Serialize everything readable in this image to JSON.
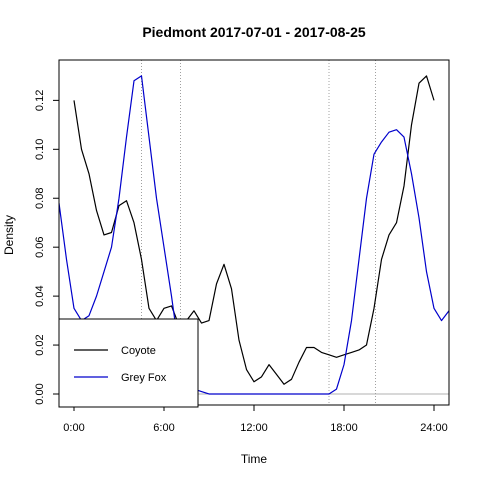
{
  "chart_data": {
    "type": "line",
    "title": "Piedmont 2017-07-01 - 2017-08-25",
    "xlabel": "Time",
    "ylabel": "Density",
    "xlim": [
      -1,
      25
    ],
    "ylim": [
      -0.0045,
      0.1365
    ],
    "x_ticks": [
      0,
      6,
      12,
      18,
      24
    ],
    "x_tick_labels": [
      "0:00",
      "6:00",
      "12:00",
      "18:00",
      "24:00"
    ],
    "y_ticks": [
      0.0,
      0.02,
      0.04,
      0.06,
      0.08,
      0.1,
      0.12
    ],
    "y_tick_labels": [
      "0.00",
      "0.02",
      "0.04",
      "0.06",
      "0.08",
      "0.10",
      "0.12"
    ],
    "vertical_reference_lines_x": [
      4.5,
      7.1,
      17.0,
      20.1
    ],
    "horizontal_reference_line_y": 0.0,
    "legend_position": "bottom-left",
    "series": [
      {
        "name": "Coyote",
        "color": "#000000",
        "x": [
          0,
          0.5,
          1,
          1.5,
          2,
          2.5,
          3,
          3.5,
          4,
          4.5,
          5,
          5.5,
          6,
          6.5,
          7,
          7.5,
          8,
          8.5,
          9,
          9.5,
          10,
          10.5,
          11,
          11.5,
          12,
          12.5,
          13,
          13.5,
          14,
          14.5,
          15,
          15.5,
          16,
          16.5,
          17,
          17.5,
          18,
          18.5,
          19,
          19.5,
          20,
          20.5,
          21,
          21.5,
          22,
          22.5,
          23,
          23.5,
          24
        ],
        "values": [
          0.12,
          0.1,
          0.09,
          0.075,
          0.065,
          0.066,
          0.077,
          0.079,
          0.07,
          0.055,
          0.035,
          0.03,
          0.035,
          0.036,
          0.028,
          0.03,
          0.034,
          0.029,
          0.03,
          0.045,
          0.053,
          0.043,
          0.022,
          0.01,
          0.005,
          0.007,
          0.012,
          0.008,
          0.004,
          0.006,
          0.013,
          0.019,
          0.019,
          0.017,
          0.016,
          0.015,
          0.016,
          0.017,
          0.018,
          0.02,
          0.035,
          0.055,
          0.065,
          0.07,
          0.085,
          0.11,
          0.127,
          0.13,
          0.12
        ]
      },
      {
        "name": "Grey Fox",
        "color": "#0000cc",
        "x": [
          -1,
          -0.5,
          0,
          0.5,
          1,
          1.5,
          2,
          2.5,
          3,
          3.5,
          4,
          4.5,
          5,
          5.5,
          6,
          6.5,
          7,
          7.5,
          8,
          8.5,
          9,
          9.5,
          10,
          11,
          12,
          13,
          14,
          15,
          16,
          16.5,
          17,
          17.5,
          18,
          18.5,
          19,
          19.5,
          20,
          20.5,
          21,
          21.5,
          22,
          22.5,
          23,
          23.5,
          24,
          24.5,
          25
        ],
        "values": [
          0.078,
          0.055,
          0.035,
          0.03,
          0.032,
          0.04,
          0.05,
          0.06,
          0.08,
          0.105,
          0.128,
          0.13,
          0.105,
          0.08,
          0.06,
          0.04,
          0.018,
          0.006,
          0.002,
          0.001,
          0.0,
          0.0,
          0.0,
          0.0,
          0.0,
          0.0,
          0.0,
          0.0,
          0.0,
          0.0,
          0.0,
          0.002,
          0.012,
          0.03,
          0.055,
          0.08,
          0.098,
          0.103,
          0.107,
          0.108,
          0.105,
          0.09,
          0.072,
          0.05,
          0.035,
          0.03,
          0.034
        ]
      }
    ]
  }
}
